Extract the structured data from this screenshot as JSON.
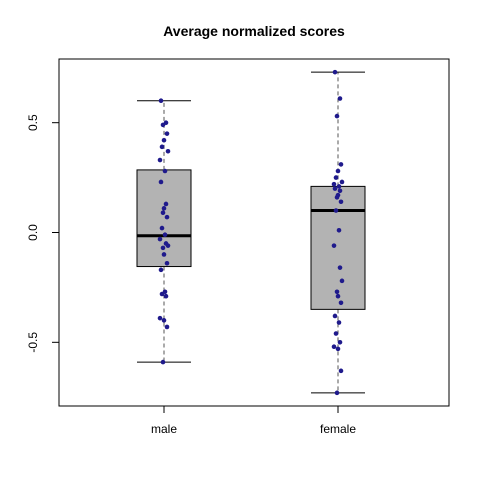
{
  "chart_data": {
    "type": "boxplot",
    "title": "Average normalized scores",
    "xlabel": "",
    "ylabel": "",
    "ylim": [
      -0.79,
      0.79
    ],
    "y_ticks": [
      -0.5,
      0.0,
      0.5
    ],
    "y_tick_labels": [
      "-0.5",
      "0.0",
      "0.5"
    ],
    "grid": false,
    "colors": {
      "box": "#b3b3b3",
      "points": "#1f1a8c",
      "median": "#000000"
    },
    "groups": [
      {
        "category": "male",
        "stats": {
          "whisker_low": -0.59,
          "q1": -0.155,
          "median": -0.015,
          "q3": 0.285,
          "whisker_high": 0.6
        },
        "points": [
          0.6,
          0.5,
          0.49,
          0.45,
          0.42,
          0.39,
          0.37,
          0.33,
          0.28,
          0.23,
          0.13,
          0.11,
          0.09,
          0.07,
          0.02,
          -0.01,
          -0.03,
          -0.05,
          -0.06,
          -0.07,
          -0.1,
          -0.14,
          -0.17,
          -0.27,
          -0.28,
          -0.29,
          -0.39,
          -0.4,
          -0.43,
          -0.59
        ]
      },
      {
        "category": "female",
        "stats": {
          "whisker_low": -0.73,
          "q1": -0.35,
          "median": 0.1,
          "q3": 0.21,
          "whisker_high": 0.73
        },
        "points": [
          0.73,
          0.61,
          0.53,
          0.31,
          0.28,
          0.25,
          0.23,
          0.22,
          0.21,
          0.2,
          0.19,
          0.17,
          0.16,
          0.14,
          0.1,
          0.01,
          -0.06,
          -0.16,
          -0.22,
          -0.27,
          -0.29,
          -0.32,
          -0.38,
          -0.41,
          -0.46,
          -0.5,
          -0.52,
          -0.53,
          -0.63,
          -0.73
        ]
      }
    ]
  }
}
